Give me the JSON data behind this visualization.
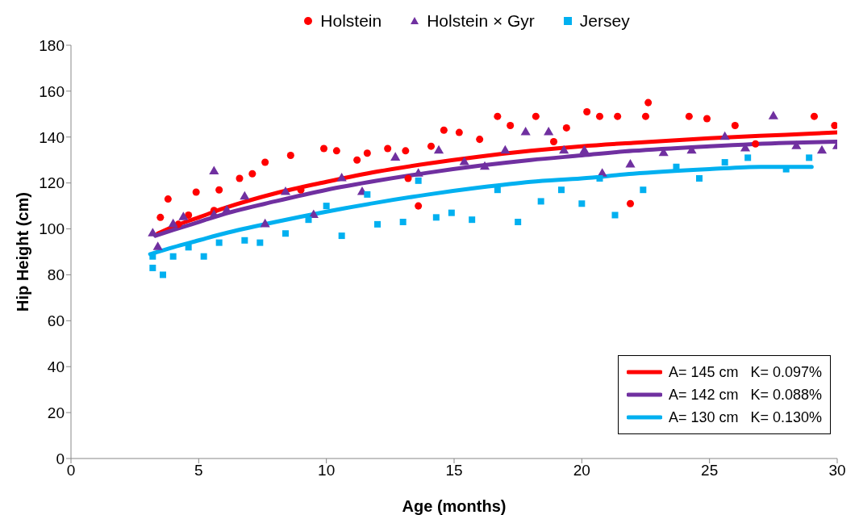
{
  "chart_data": {
    "type": "scatter",
    "xlabel": "Age (months)",
    "ylabel": "Hip Height (cm)",
    "xlim": [
      0,
      30
    ],
    "xticks": [
      0,
      5,
      10,
      15,
      20,
      25,
      30
    ],
    "ylim": [
      0,
      180
    ],
    "yticks": [
      0,
      20,
      40,
      60,
      80,
      100,
      120,
      140,
      160,
      180
    ],
    "grid": false,
    "legend": "top",
    "series": [
      {
        "name": "Holstein",
        "color": "#ff0000",
        "marker": "circle",
        "x": [
          3.5,
          3.8,
          4.2,
          4.6,
          4.9,
          5.6,
          5.8,
          6.6,
          7.1,
          7.6,
          8.6,
          9.0,
          9.9,
          10.4,
          11.2,
          11.6,
          12.4,
          13.1,
          13.2,
          13.6,
          14.1,
          14.6,
          15.2,
          16.0,
          16.7,
          17.2,
          18.2,
          18.9,
          19.4,
          20.2,
          20.7,
          21.4,
          21.9,
          22.5,
          22.6,
          24.2,
          24.9,
          26.0,
          26.8,
          29.1,
          29.9
        ],
        "values": [
          105,
          113,
          102,
          106,
          116,
          108,
          117,
          122,
          124,
          129,
          132,
          117,
          135,
          134,
          130,
          133,
          135,
          134,
          122,
          110,
          136,
          143,
          142,
          139,
          149,
          145,
          149,
          138,
          144,
          151,
          149,
          149,
          111,
          149,
          155,
          149,
          148,
          145,
          137,
          149,
          145
        ]
      },
      {
        "name": "Holstein × Gyr",
        "color": "#7030a0",
        "marker": "triangle",
        "x": [
          3.2,
          3.4,
          4.0,
          4.4,
          5.6,
          5.6,
          6.1,
          6.8,
          7.6,
          8.4,
          9.5,
          10.6,
          11.4,
          12.7,
          13.6,
          14.4,
          15.4,
          16.2,
          17.0,
          17.8,
          18.7,
          19.3,
          20.1,
          20.8,
          21.9,
          23.2,
          24.3,
          25.6,
          26.4,
          27.5,
          28.4,
          29.4,
          30.0
        ],
        "values": [
          98,
          92,
          102,
          105,
          106,
          125,
          108,
          114,
          102,
          116,
          106,
          122,
          116,
          131,
          124,
          134,
          129,
          127,
          134,
          142,
          142,
          134,
          134,
          124,
          128,
          133,
          134,
          140,
          135,
          149,
          136,
          134,
          136
        ]
      },
      {
        "name": "Jersey",
        "color": "#00b0f0",
        "marker": "square",
        "x": [
          3.2,
          3.2,
          3.6,
          4.0,
          4.6,
          5.2,
          5.8,
          6.8,
          7.4,
          8.4,
          9.3,
          10.0,
          10.6,
          11.6,
          12.0,
          13.0,
          13.6,
          14.3,
          14.9,
          15.7,
          16.7,
          17.5,
          18.4,
          19.2,
          20.0,
          20.7,
          21.3,
          22.4,
          23.7,
          24.6,
          25.6,
          26.5,
          28.0,
          28.9
        ],
        "values": [
          88,
          83,
          80,
          88,
          92,
          88,
          94,
          95,
          94,
          98,
          104,
          110,
          97,
          115,
          102,
          103,
          121,
          105,
          107,
          104,
          117,
          103,
          112,
          117,
          111,
          122,
          106,
          117,
          127,
          122,
          129,
          131,
          126,
          131
        ]
      },
      {
        "name": "A= 145 cm   K= 0.097%",
        "type": "line",
        "color": "#ff0000",
        "x": [
          3.4,
          4,
          5,
          6,
          8,
          10,
          12,
          14,
          16,
          18,
          20,
          22,
          25,
          28,
          30
        ],
        "values": [
          98,
          101,
          105,
          109,
          115.5,
          120.5,
          125,
          128.5,
          131.5,
          134,
          136,
          137.5,
          139.5,
          141,
          142
        ]
      },
      {
        "name": "A= 142 cm   K= 0.088%",
        "type": "line",
        "color": "#7030a0",
        "x": [
          3.3,
          4,
          5,
          6,
          8,
          10,
          12,
          14,
          16,
          18,
          20,
          22,
          25,
          28,
          30
        ],
        "values": [
          97,
          99.5,
          103,
          106.5,
          112,
          117,
          121,
          124.5,
          127.5,
          130,
          132,
          134,
          136,
          137.5,
          138
        ]
      },
      {
        "name": "A= 130 cm   K= 0.130%",
        "type": "line",
        "color": "#00b0f0",
        "x": [
          3.1,
          4,
          5,
          6,
          8,
          10,
          12,
          14,
          16,
          18,
          20,
          22,
          25,
          27,
          29
        ],
        "values": [
          89,
          92,
          95,
          98,
          103,
          107.5,
          111.5,
          115,
          118,
          120.5,
          122,
          124,
          126,
          127,
          127
        ]
      }
    ]
  }
}
